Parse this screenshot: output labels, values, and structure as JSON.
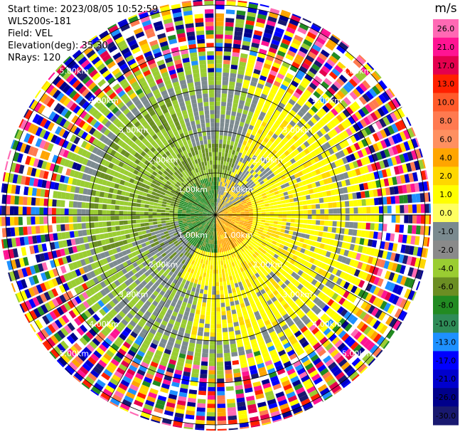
{
  "header": {
    "start_time": "Start time: 2023/08/05 10:52:59",
    "instrument": "WLS200s-181",
    "field": "Field: VEL",
    "elevation": "Elevation(deg): 35.30",
    "nrays": "NRays: 120"
  },
  "range_rings": {
    "labels": [
      "1.00km",
      "2.00km",
      "3.00km",
      "4.00km",
      "5.00km"
    ]
  },
  "colorbar": {
    "unit": "m/s",
    "ticks": [
      "26.0",
      "21.0",
      "17.0",
      "13.0",
      "10.0",
      "8.0",
      "6.0",
      "4.0",
      "2.0",
      "1.0",
      "0.0",
      "-1.0",
      "-2.0",
      "-4.0",
      "-6.0",
      "-8.0",
      "-10.0",
      "-13.0",
      "-17.0",
      "-21.0",
      "-26.0",
      "-30.0"
    ],
    "colors": [
      "#ff69b4",
      "#ff1493",
      "#e4004e",
      "#ff2000",
      "#ff5a2a",
      "#ff7a50",
      "#ff9060",
      "#ffa500",
      "#ffd700",
      "#ffff00",
      "#ffff60",
      "#7a8a8f",
      "#8a8a8a",
      "#9acd32",
      "#6b8e23",
      "#228b22",
      "#2e8b57",
      "#1e90ff",
      "#0000ff",
      "#0000cd",
      "#00008b",
      "#191970"
    ]
  },
  "colors": {
    "rings": "#000000",
    "axes": "#000000"
  }
}
